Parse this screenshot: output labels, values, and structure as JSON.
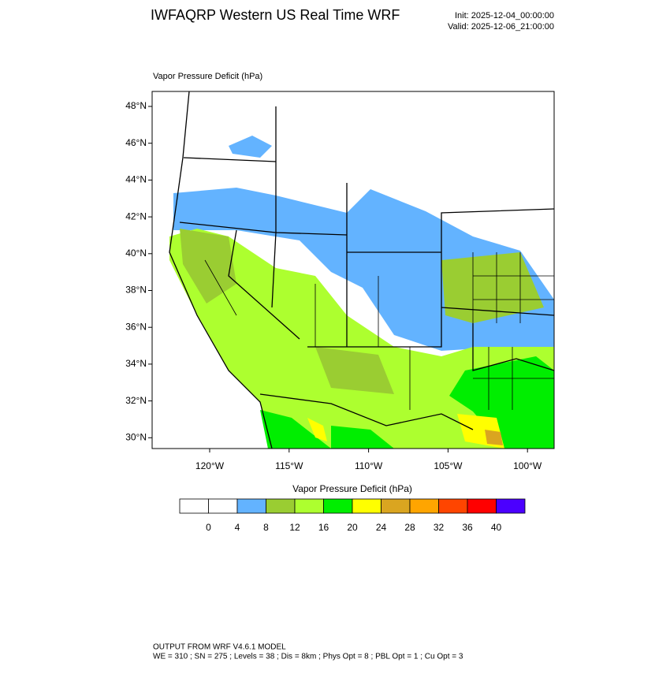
{
  "header": {
    "title": "IWFAQRP Western US Real Time WRF",
    "init": "Init: 2025-12-04_00:00:00",
    "valid": "Valid: 2025-12-06_21:00:00"
  },
  "map": {
    "label": "Vapor Pressure Deficit   (hPa)",
    "lat_labels": [
      "48°N",
      "46°N",
      "44°N",
      "42°N",
      "40°N",
      "38°N",
      "36°N",
      "34°N",
      "32°N",
      "30°N"
    ],
    "lon_labels": [
      "120°W",
      "115°W",
      "110°W",
      "105°W",
      "100°W"
    ]
  },
  "colorbar": {
    "title": "Vapor Pressure Deficit  (hPa)",
    "colors": [
      "#ffffff",
      "#ffffff",
      "#63b3ff",
      "#9acd32",
      "#adff2f",
      "#00ee00",
      "#ffff00",
      "#daa520",
      "#ffa500",
      "#ff4500",
      "#ff0000",
      "#4b00ff"
    ],
    "labels": [
      0,
      4,
      8,
      12,
      16,
      20,
      24,
      28,
      32,
      36,
      40
    ]
  },
  "footer": {
    "line1": "OUTPUT FROM WRF V4.6.1 MODEL",
    "line2": "WE = 310 ; SN = 275 ; Levels = 38 ; Dis = 8km ; Phys Opt = 8 ; PBL Opt = 1 ; Cu Opt = 3"
  }
}
